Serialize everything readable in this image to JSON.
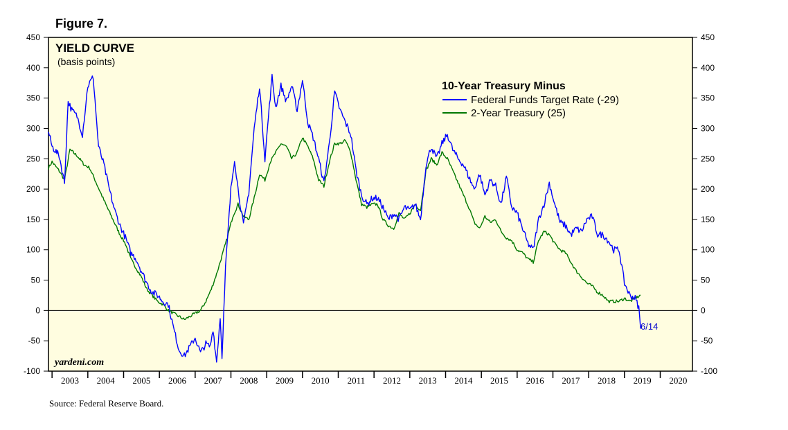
{
  "figure_label": "Figure 7.",
  "source": "Source: Federal Reserve Board.",
  "chart_data": {
    "type": "line",
    "title": "YIELD CURVE",
    "subtitle": "(basis points)",
    "legend_title": "10-Year Treasury Minus",
    "watermark": "yardeni.com",
    "end_annotation": "6/14",
    "xlabel": "",
    "ylabel": "",
    "xlim": [
      2002.9,
      2020.9
    ],
    "ylim": [
      -100,
      450
    ],
    "yticks": [
      450,
      400,
      350,
      300,
      250,
      200,
      150,
      100,
      50,
      0,
      -50,
      -100
    ],
    "xticks": [
      "2003",
      "2004",
      "2005",
      "2006",
      "2007",
      "2008",
      "2009",
      "2010",
      "2011",
      "2012",
      "2013",
      "2014",
      "2015",
      "2016",
      "2017",
      "2018",
      "2019",
      "2020"
    ],
    "grid": false,
    "zero_line": true,
    "background": "#fffde0",
    "legend_position": "top-right",
    "series": [
      {
        "name": "Federal Funds Target Rate (-29)",
        "color": "#0000ff",
        "x": [
          2002.9,
          2003.0,
          2003.2,
          2003.35,
          2003.45,
          2003.55,
          2003.7,
          2003.85,
          2004.0,
          2004.15,
          2004.3,
          2004.45,
          2004.6,
          2004.75,
          2004.9,
          2005.05,
          2005.2,
          2005.35,
          2005.5,
          2005.65,
          2005.8,
          2005.95,
          2006.1,
          2006.25,
          2006.4,
          2006.55,
          2006.7,
          2006.85,
          2007.0,
          2007.15,
          2007.3,
          2007.42,
          2007.5,
          2007.6,
          2007.7,
          2007.75,
          2007.85,
          2008.0,
          2008.1,
          2008.2,
          2008.35,
          2008.5,
          2008.65,
          2008.8,
          2008.95,
          2009.05,
          2009.15,
          2009.25,
          2009.4,
          2009.55,
          2009.7,
          2009.85,
          2010.0,
          2010.15,
          2010.3,
          2010.45,
          2010.6,
          2010.75,
          2010.9,
          2011.05,
          2011.2,
          2011.35,
          2011.5,
          2011.65,
          2011.8,
          2011.95,
          2012.1,
          2012.25,
          2012.4,
          2012.55,
          2012.7,
          2012.85,
          2013.0,
          2013.15,
          2013.3,
          2013.45,
          2013.6,
          2013.75,
          2013.9,
          2014.05,
          2014.2,
          2014.35,
          2014.5,
          2014.65,
          2014.8,
          2014.95,
          2015.1,
          2015.25,
          2015.4,
          2015.55,
          2015.7,
          2015.85,
          2016.0,
          2016.15,
          2016.3,
          2016.45,
          2016.6,
          2016.75,
          2016.9,
          2017.05,
          2017.2,
          2017.35,
          2017.5,
          2017.65,
          2017.8,
          2017.95,
          2018.1,
          2018.25,
          2018.4,
          2018.55,
          2018.7,
          2018.85,
          2019.0,
          2019.15,
          2019.3,
          2019.4,
          2019.45
        ],
        "y": [
          295,
          270,
          255,
          210,
          345,
          330,
          320,
          290,
          370,
          385,
          270,
          240,
          200,
          165,
          140,
          120,
          95,
          85,
          65,
          45,
          30,
          25,
          15,
          10,
          -30,
          -65,
          -75,
          -60,
          -45,
          -70,
          -55,
          -60,
          -30,
          -85,
          -10,
          -75,
          70,
          200,
          250,
          200,
          140,
          195,
          300,
          370,
          250,
          320,
          385,
          335,
          370,
          345,
          370,
          330,
          380,
          310,
          285,
          250,
          210,
          275,
          360,
          330,
          310,
          290,
          230,
          190,
          175,
          185,
          185,
          170,
          150,
          160,
          150,
          170,
          165,
          175,
          150,
          240,
          270,
          250,
          275,
          290,
          265,
          250,
          240,
          220,
          200,
          225,
          190,
          215,
          205,
          175,
          220,
          170,
          160,
          135,
          110,
          100,
          150,
          175,
          210,
          175,
          145,
          140,
          125,
          135,
          130,
          150,
          155,
          125,
          125,
          115,
          100,
          100,
          45,
          25,
          20,
          5,
          -30
        ]
      },
      {
        "name": "2-Year Treasury (25)",
        "color": "#007700",
        "x": [
          2002.9,
          2003.0,
          2003.2,
          2003.35,
          2003.5,
          2003.7,
          2003.9,
          2004.05,
          2004.2,
          2004.35,
          2004.5,
          2004.7,
          2004.9,
          2005.05,
          2005.2,
          2005.35,
          2005.5,
          2005.65,
          2005.8,
          2005.95,
          2006.1,
          2006.25,
          2006.4,
          2006.55,
          2006.7,
          2006.85,
          2007.0,
          2007.15,
          2007.3,
          2007.45,
          2007.6,
          2007.75,
          2007.9,
          2008.05,
          2008.2,
          2008.35,
          2008.5,
          2008.65,
          2008.8,
          2008.95,
          2009.1,
          2009.25,
          2009.4,
          2009.55,
          2009.7,
          2009.85,
          2010.0,
          2010.15,
          2010.3,
          2010.45,
          2010.6,
          2010.75,
          2010.9,
          2011.05,
          2011.2,
          2011.35,
          2011.5,
          2011.65,
          2011.8,
          2011.95,
          2012.1,
          2012.25,
          2012.4,
          2012.55,
          2012.7,
          2012.85,
          2013.0,
          2013.15,
          2013.3,
          2013.45,
          2013.6,
          2013.75,
          2013.9,
          2014.05,
          2014.2,
          2014.35,
          2014.5,
          2014.65,
          2014.8,
          2014.95,
          2015.1,
          2015.25,
          2015.4,
          2015.55,
          2015.7,
          2015.85,
          2016.0,
          2016.15,
          2016.3,
          2016.45,
          2016.6,
          2016.75,
          2016.9,
          2017.05,
          2017.2,
          2017.35,
          2017.5,
          2017.65,
          2017.8,
          2017.95,
          2018.1,
          2018.25,
          2018.4,
          2018.55,
          2018.7,
          2018.85,
          2019.0,
          2019.15,
          2019.3,
          2019.45
        ],
        "y": [
          235,
          245,
          230,
          215,
          265,
          255,
          240,
          235,
          215,
          195,
          175,
          150,
          125,
          110,
          85,
          70,
          55,
          35,
          25,
          15,
          10,
          0,
          -5,
          -10,
          -15,
          -10,
          -5,
          0,
          15,
          35,
          60,
          90,
          120,
          155,
          175,
          155,
          150,
          185,
          225,
          215,
          245,
          260,
          275,
          270,
          250,
          260,
          285,
          270,
          250,
          215,
          205,
          245,
          275,
          275,
          280,
          260,
          215,
          175,
          170,
          175,
          175,
          150,
          140,
          135,
          160,
          150,
          160,
          175,
          165,
          230,
          250,
          240,
          260,
          250,
          230,
          210,
          190,
          170,
          145,
          135,
          155,
          145,
          150,
          130,
          120,
          115,
          100,
          95,
          85,
          80,
          115,
          130,
          125,
          110,
          100,
          95,
          80,
          65,
          55,
          45,
          40,
          30,
          25,
          15,
          15,
          15,
          20,
          15,
          20,
          25
        ]
      }
    ]
  }
}
